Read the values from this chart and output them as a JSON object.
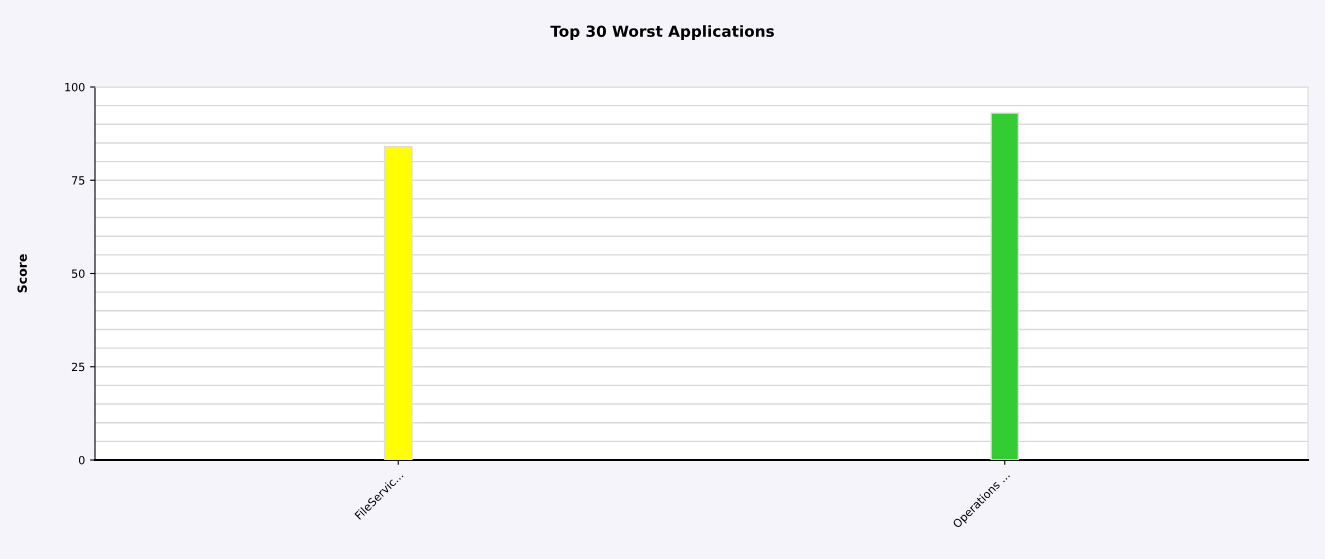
{
  "chart_data": {
    "type": "bar",
    "title": "Top 30 Worst Applications",
    "ylabel": "Score",
    "categories": [
      "FileServic...",
      "Operations ..."
    ],
    "values": [
      84,
      93
    ],
    "colors": [
      "#ffff00",
      "#33cc33"
    ],
    "ylim": [
      0,
      100
    ],
    "yticks": [
      0,
      {
        "value": 5,
        "label": null
      },
      {
        "value": 10,
        "label": null
      },
      {
        "value": 15,
        "label": null
      },
      {
        "value": 20,
        "label": null
      },
      25,
      {
        "value": 30,
        "label": null
      },
      {
        "value": 35,
        "label": null
      },
      {
        "value": 40,
        "label": null
      },
      {
        "value": 45,
        "label": null
      },
      50,
      {
        "value": 55,
        "label": null
      },
      {
        "value": 60,
        "label": null
      },
      {
        "value": 65,
        "label": null
      },
      {
        "value": 70,
        "label": null
      },
      75,
      {
        "value": 80,
        "label": null
      },
      {
        "value": 85,
        "label": null
      },
      {
        "value": 90,
        "label": null
      },
      {
        "value": 95,
        "label": null
      },
      100
    ],
    "grid": "y",
    "legend": false
  }
}
